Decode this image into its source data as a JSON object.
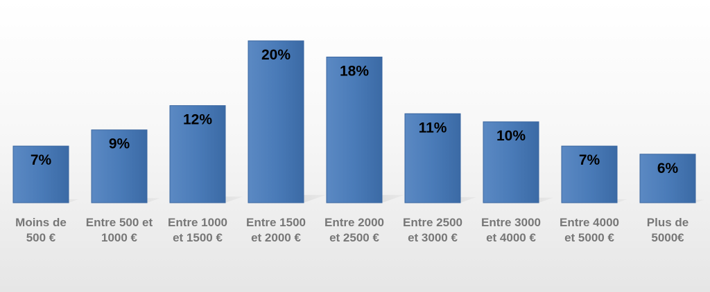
{
  "chart_data": {
    "type": "bar",
    "title": "",
    "xlabel": "",
    "ylabel": "",
    "categories": [
      "Moins de\n500 €",
      "Entre 500 et\n1000 €",
      "Entre 1000\net 1500 €",
      "Entre 1500\net 2000 €",
      "Entre 2000\net 2500 €",
      "Entre 2500\net 3000 €",
      "Entre 3000\net 4000 €",
      "Entre 4000\net 5000 €",
      "Plus de\n5000€"
    ],
    "values": [
      7,
      9,
      12,
      20,
      18,
      11,
      10,
      7,
      6
    ],
    "data_labels": [
      "7%",
      "9%",
      "12%",
      "20%",
      "18%",
      "11%",
      "10%",
      "7%",
      "6%"
    ],
    "unit": "%",
    "ylim": [
      0,
      20
    ],
    "grid": false,
    "legend": "none",
    "colors": {
      "bar": "#4f81bd",
      "bar_dark": "#3b6aa5",
      "label_text": "#000000",
      "category_text": "#777777"
    }
  }
}
